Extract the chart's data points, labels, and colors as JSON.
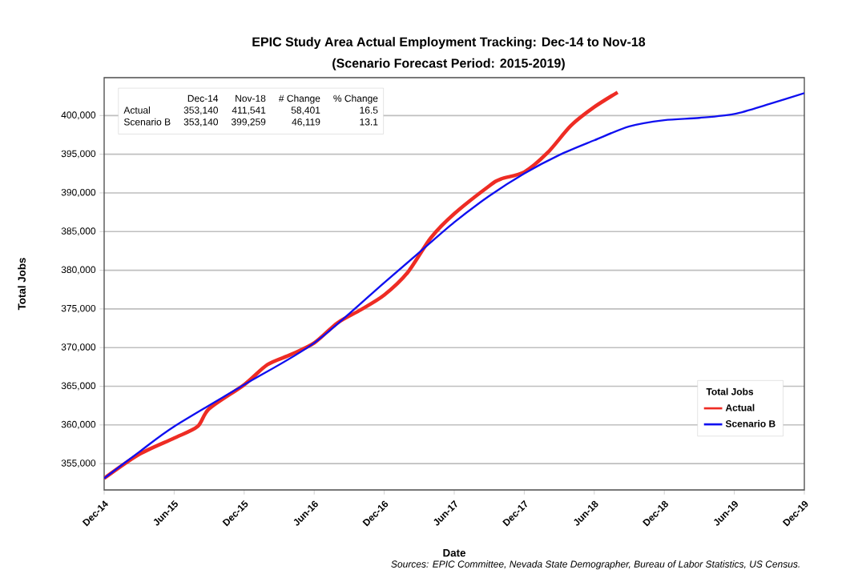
{
  "chart_data": {
    "type": "line",
    "title": "EPIC Study Area Actual Employment Tracking: Dec-14 to Nov-18",
    "subtitle": "(Scenario Forecast Period: 2015-2019)",
    "xlabel": "Date",
    "ylabel": "Total Jobs",
    "legend_title": "Total Jobs",
    "annotations": [
      "Dec-14",
      "Nov-18",
      "# Change",
      "% Change",
      "Actual",
      "353,140",
      "411,541",
      "58,401",
      "16.5",
      "Scenario B",
      "353,140",
      "399,259",
      "46,119",
      "13.1",
      "Sources: EPIC Committee, Nevada State Demographer, Bureau of Labor Statistics, US Census."
    ],
    "xlim": [
      "2014-12",
      "2019-12"
    ],
    "xticks": [
      {
        "value": "2014-12",
        "label": "Dec-14"
      },
      {
        "value": "2015-06",
        "label": "Jun-15"
      },
      {
        "value": "2015-12",
        "label": "Dec-15"
      },
      {
        "value": "2016-06",
        "label": "Jun-16"
      },
      {
        "value": "2016-12",
        "label": "Dec-16"
      },
      {
        "value": "2017-06",
        "label": "Jun-17"
      },
      {
        "value": "2017-12",
        "label": "Dec-17"
      },
      {
        "value": "2018-06",
        "label": "Jun-18"
      },
      {
        "value": "2018-12",
        "label": "Dec-18"
      },
      {
        "value": "2019-06",
        "label": "Jun-19"
      },
      {
        "value": "2019-12",
        "label": "Dec-19"
      }
    ],
    "ylim": [
      351600,
      404900
    ],
    "yticks": [
      {
        "value": 355000,
        "label": "355,000"
      },
      {
        "value": 360000,
        "label": "360,000"
      },
      {
        "value": 365000,
        "label": "365,000"
      },
      {
        "value": 370000,
        "label": "370,000"
      },
      {
        "value": 375000,
        "label": "375,000"
      },
      {
        "value": 380000,
        "label": "380,000"
      },
      {
        "value": 385000,
        "label": "385,000"
      },
      {
        "value": 390000,
        "label": "390,000"
      },
      {
        "value": 395000,
        "label": "395,000"
      },
      {
        "value": 400000,
        "label": "400,000"
      }
    ],
    "grid": "y",
    "legend": "bottom right",
    "series": [
      {
        "name": "Actual",
        "color": "#ee2c24",
        "x": [
          "2014-12",
          "2015-03",
          "2015-06",
          "2015-08",
          "2015-09",
          "2015-12",
          "2016-02",
          "2016-04",
          "2016-06",
          "2016-08",
          "2016-10",
          "2016-12",
          "2017-02",
          "2017-04",
          "2017-06",
          "2017-09",
          "2017-10",
          "2017-12",
          "2018-02",
          "2018-04",
          "2018-06",
          "2018-08"
        ],
        "values": [
          353100,
          356200,
          358300,
          359800,
          362100,
          365200,
          367800,
          369100,
          370600,
          373200,
          374900,
          376800,
          379700,
          384200,
          387300,
          390900,
          391800,
          392700,
          395200,
          398700,
          401100,
          403000
        ]
      },
      {
        "name": "Scenario B",
        "color": "#1010f0",
        "x": [
          "2014-12",
          "2015-03",
          "2015-06",
          "2015-12",
          "2016-06",
          "2016-12",
          "2017-03",
          "2017-06",
          "2017-09",
          "2017-12",
          "2018-03",
          "2018-06",
          "2018-09",
          "2018-12",
          "2019-03",
          "2019-06",
          "2019-09",
          "2019-12"
        ],
        "values": [
          353100,
          356500,
          359800,
          365200,
          370600,
          378400,
          382300,
          386200,
          389600,
          392500,
          394900,
          396800,
          398600,
          399400,
          399700,
          400200,
          401500,
          402900
        ]
      }
    ]
  }
}
